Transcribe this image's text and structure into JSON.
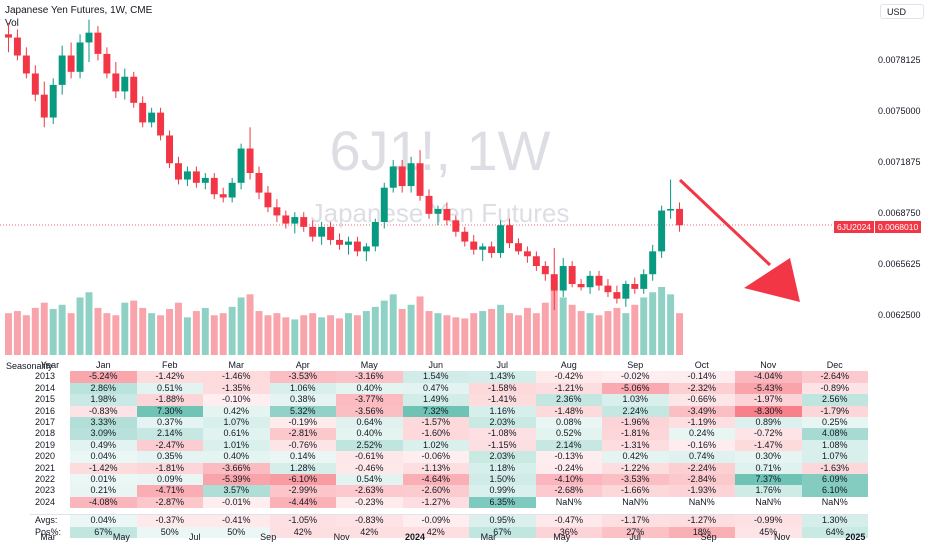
{
  "header": {
    "title": "Japanese Yen Futures, 1W, CME",
    "volume_label": "Vol"
  },
  "currency": "USD",
  "watermark": {
    "symbol": "6J1!, 1W",
    "name": "Japanese Yen Futures"
  },
  "price_axis": [
    "0.0078125",
    "0.0075000",
    "0.0071875",
    "0.0068750",
    "0.0065625",
    "0.0062500"
  ],
  "price_tag": {
    "symbol": "6JU2024",
    "price": "0.0068010"
  },
  "time_axis": [
    {
      "label": "Mar"
    },
    {
      "label": "May"
    },
    {
      "label": "Jul"
    },
    {
      "label": "Sep"
    },
    {
      "label": "Nov"
    },
    {
      "label": "2024",
      "bold": true
    },
    {
      "label": "Mar"
    },
    {
      "label": "May"
    },
    {
      "label": "Jul"
    },
    {
      "label": "Sep"
    },
    {
      "label": "Nov"
    },
    {
      "label": "2025",
      "bold": true
    }
  ],
  "colors": {
    "up": "#089981",
    "down": "#f23645",
    "arrow": "#f23645"
  },
  "chart_data": {
    "type": "candlestick",
    "title": "Japanese Yen Futures, 1W, CME",
    "ylim": [
      0.0061,
      0.008
    ],
    "candles": [
      [
        0.00797,
        0.00804,
        0.00786,
        0.00795
      ],
      [
        0.00795,
        0.008,
        0.00781,
        0.00784
      ],
      [
        0.00784,
        0.00789,
        0.0077,
        0.00773
      ],
      [
        0.00773,
        0.00778,
        0.00756,
        0.0076
      ],
      [
        0.0076,
        0.00768,
        0.0074,
        0.00746
      ],
      [
        0.00746,
        0.0077,
        0.00742,
        0.00766
      ],
      [
        0.00766,
        0.0079,
        0.0076,
        0.00784
      ],
      [
        0.00784,
        0.00792,
        0.0077,
        0.00774
      ],
      [
        0.00774,
        0.00797,
        0.0077,
        0.00792
      ],
      [
        0.00792,
        0.00806,
        0.0078,
        0.00798
      ],
      [
        0.00798,
        0.00802,
        0.00781,
        0.00785
      ],
      [
        0.00785,
        0.00789,
        0.0077,
        0.00773
      ],
      [
        0.00773,
        0.0078,
        0.00758,
        0.00762
      ],
      [
        0.00762,
        0.00776,
        0.00757,
        0.00771
      ],
      [
        0.00771,
        0.00774,
        0.00752,
        0.00755
      ],
      [
        0.00755,
        0.00759,
        0.0074,
        0.00743
      ],
      [
        0.00743,
        0.00752,
        0.0074,
        0.00749
      ],
      [
        0.00749,
        0.00752,
        0.00732,
        0.00735
      ],
      [
        0.00735,
        0.00738,
        0.00715,
        0.00718
      ],
      [
        0.00718,
        0.00722,
        0.00705,
        0.00708
      ],
      [
        0.00708,
        0.00716,
        0.00704,
        0.00713
      ],
      [
        0.00713,
        0.00716,
        0.00703,
        0.00706
      ],
      [
        0.00706,
        0.00712,
        0.00702,
        0.00709
      ],
      [
        0.00709,
        0.00712,
        0.00696,
        0.00699
      ],
      [
        0.00699,
        0.00703,
        0.00694,
        0.00697
      ],
      [
        0.00697,
        0.00709,
        0.00694,
        0.00706
      ],
      [
        0.00706,
        0.0073,
        0.00702,
        0.00727
      ],
      [
        0.00727,
        0.0074,
        0.00708,
        0.00712
      ],
      [
        0.00712,
        0.00716,
        0.00696,
        0.007
      ],
      [
        0.007,
        0.00704,
        0.00688,
        0.00691
      ],
      [
        0.00691,
        0.00696,
        0.00682,
        0.00686
      ],
      [
        0.00686,
        0.00689,
        0.00678,
        0.00681
      ],
      [
        0.00681,
        0.00688,
        0.00675,
        0.00685
      ],
      [
        0.00685,
        0.00688,
        0.00676,
        0.00679
      ],
      [
        0.00679,
        0.00683,
        0.0067,
        0.00673
      ],
      [
        0.00673,
        0.00682,
        0.00668,
        0.00679
      ],
      [
        0.00679,
        0.00682,
        0.00668,
        0.00671
      ],
      [
        0.00671,
        0.00675,
        0.00665,
        0.00668
      ],
      [
        0.00668,
        0.00673,
        0.00662,
        0.0067
      ],
      [
        0.0067,
        0.00673,
        0.00661,
        0.00664
      ],
      [
        0.00664,
        0.00669,
        0.00658,
        0.00667
      ],
      [
        0.00667,
        0.00684,
        0.00664,
        0.00682
      ],
      [
        0.00682,
        0.00706,
        0.00678,
        0.00703
      ],
      [
        0.00703,
        0.0072,
        0.007,
        0.00716
      ],
      [
        0.00716,
        0.0072,
        0.007,
        0.00704
      ],
      [
        0.00704,
        0.00722,
        0.007,
        0.00718
      ],
      [
        0.00718,
        0.00726,
        0.00695,
        0.00698
      ],
      [
        0.00698,
        0.00702,
        0.00684,
        0.00687
      ],
      [
        0.00687,
        0.00692,
        0.0068,
        0.0069
      ],
      [
        0.0069,
        0.00694,
        0.0068,
        0.00683
      ],
      [
        0.00683,
        0.00686,
        0.00673,
        0.00676
      ],
      [
        0.00676,
        0.00679,
        0.00667,
        0.0067
      ],
      [
        0.0067,
        0.00674,
        0.00662,
        0.00665
      ],
      [
        0.00665,
        0.00669,
        0.00658,
        0.00667
      ],
      [
        0.00667,
        0.0067,
        0.0066,
        0.00663
      ],
      [
        0.00663,
        0.00683,
        0.0066,
        0.0068
      ],
      [
        0.0068,
        0.00684,
        0.00666,
        0.00669
      ],
      [
        0.00669,
        0.00672,
        0.00662,
        0.00664
      ],
      [
        0.00664,
        0.00667,
        0.00657,
        0.00661
      ],
      [
        0.00661,
        0.00664,
        0.00652,
        0.00655
      ],
      [
        0.00655,
        0.00658,
        0.00646,
        0.0065
      ],
      [
        0.0065,
        0.00666,
        0.00628,
        0.0064
      ],
      [
        0.0064,
        0.0066,
        0.00636,
        0.00655
      ],
      [
        0.00655,
        0.00658,
        0.00642,
        0.00644
      ],
      [
        0.00644,
        0.00647,
        0.0064,
        0.00642
      ],
      [
        0.00642,
        0.00652,
        0.00638,
        0.00649
      ],
      [
        0.00649,
        0.00652,
        0.0064,
        0.00643
      ],
      [
        0.00643,
        0.00647,
        0.00636,
        0.00639
      ],
      [
        0.00639,
        0.00643,
        0.00632,
        0.00635
      ],
      [
        0.00635,
        0.00646,
        0.0063,
        0.00644
      ],
      [
        0.00644,
        0.00648,
        0.00638,
        0.00641
      ],
      [
        0.00641,
        0.00653,
        0.00638,
        0.0065
      ],
      [
        0.0065,
        0.00668,
        0.00646,
        0.00664
      ],
      [
        0.00664,
        0.00692,
        0.0066,
        0.00689
      ],
      [
        0.00689,
        0.00708,
        0.00684,
        0.0069
      ],
      [
        0.0069,
        0.00694,
        0.00676,
        0.0068
      ]
    ],
    "volume": [
      40,
      42,
      38,
      45,
      50,
      44,
      48,
      40,
      55,
      60,
      45,
      40,
      38,
      50,
      52,
      45,
      40,
      38,
      44,
      50,
      36,
      42,
      45,
      38,
      40,
      46,
      55,
      58,
      42,
      38,
      40,
      36,
      34,
      38,
      40,
      36,
      38,
      35,
      40,
      38,
      42,
      46,
      52,
      58,
      44,
      48,
      56,
      42,
      40,
      38,
      36,
      35,
      40,
      42,
      44,
      48,
      40,
      38,
      45,
      40,
      50,
      62,
      55,
      48,
      42,
      40,
      38,
      42,
      45,
      40,
      48,
      55,
      60,
      65,
      58,
      40
    ],
    "seasonality": {
      "title": "Seasonality",
      "columns": [
        "Year",
        "Jan",
        "Feb",
        "Mar",
        "Apr",
        "May",
        "Jun",
        "Jul",
        "Aug",
        "Sep",
        "Oct",
        "Nov",
        "Dec"
      ],
      "rows": [
        [
          "2013",
          "-5.24%",
          "-1.42%",
          "-1.46%",
          "-3.53%",
          "-3.16%",
          "1.54%",
          "1.43%",
          "-0.42%",
          "-0.02%",
          "-0.14%",
          "-4.04%",
          "-2.64%"
        ],
        [
          "2014",
          "2.86%",
          "0.51%",
          "-1.35%",
          "1.06%",
          "0.40%",
          "0.47%",
          "-1.58%",
          "-1.21%",
          "-5.06%",
          "-2.32%",
          "-5.43%",
          "-0.89%"
        ],
        [
          "2015",
          "1.98%",
          "-1.88%",
          "-0.10%",
          "0.38%",
          "-3.77%",
          "1.49%",
          "-1.41%",
          "2.36%",
          "1.03%",
          "-0.66%",
          "-1.97%",
          "2.56%"
        ],
        [
          "2016",
          "-0.83%",
          "7.30%",
          "0.42%",
          "5.32%",
          "-3.56%",
          "7.32%",
          "1.16%",
          "-1.48%",
          "2.24%",
          "-3.49%",
          "-8.30%",
          "-1.79%"
        ],
        [
          "2017",
          "3.33%",
          "0.37%",
          "1.07%",
          "-0.19%",
          "0.64%",
          "-1.57%",
          "2.03%",
          "0.08%",
          "-1.96%",
          "-1.19%",
          "0.89%",
          "0.25%"
        ],
        [
          "2018",
          "3.09%",
          "2.14%",
          "0.61%",
          "-2.81%",
          "0.40%",
          "-1.60%",
          "-1.08%",
          "0.52%",
          "-1.81%",
          "0.24%",
          "-0.72%",
          "4.08%"
        ],
        [
          "2019",
          "0.49%",
          "-2.47%",
          "1.01%",
          "-0.76%",
          "2.52%",
          "1.02%",
          "-1.15%",
          "2.14%",
          "-1.31%",
          "-0.16%",
          "-1.47%",
          "1.08%"
        ],
        [
          "2020",
          "0.04%",
          "0.35%",
          "0.40%",
          "0.14%",
          "-0.61%",
          "-0.06%",
          "2.03%",
          "-0.13%",
          "0.42%",
          "0.74%",
          "0.30%",
          "1.07%"
        ],
        [
          "2021",
          "-1.42%",
          "-1.81%",
          "-3.66%",
          "1.28%",
          "-0.46%",
          "-1.13%",
          "1.18%",
          "-0.24%",
          "-1.22%",
          "-2.24%",
          "0.71%",
          "-1.63%"
        ],
        [
          "2022",
          "0.01%",
          "0.09%",
          "-5.39%",
          "-6.10%",
          "0.54%",
          "-4.64%",
          "1.50%",
          "-4.10%",
          "-3.53%",
          "-2.84%",
          "7.37%",
          "6.09%"
        ],
        [
          "2023",
          "0.21%",
          "-4.71%",
          "3.57%",
          "-2.99%",
          "-2.63%",
          "-2.60%",
          "0.99%",
          "-2.68%",
          "-1.66%",
          "-1.93%",
          "1.76%",
          "6.10%"
        ],
        [
          "2024",
          "-4.08%",
          "-2.87%",
          "-0.01%",
          "-4.44%",
          "-0.23%",
          "-1.27%",
          "6.35%",
          "NaN%",
          "NaN%",
          "NaN%",
          "NaN%",
          "NaN%"
        ]
      ],
      "summary": [
        [
          "Avgs:",
          "0.04%",
          "-0.37%",
          "-0.41%",
          "-1.05%",
          "-0.83%",
          "-0.09%",
          "0.95%",
          "-0.47%",
          "-1.17%",
          "-1.27%",
          "-0.99%",
          "1.30%"
        ],
        [
          "Pos%:",
          "67%",
          "50%",
          "50%",
          "42%",
          "42%",
          "42%",
          "67%",
          "36%",
          "27%",
          "18%",
          "45%",
          "64%"
        ]
      ]
    }
  }
}
